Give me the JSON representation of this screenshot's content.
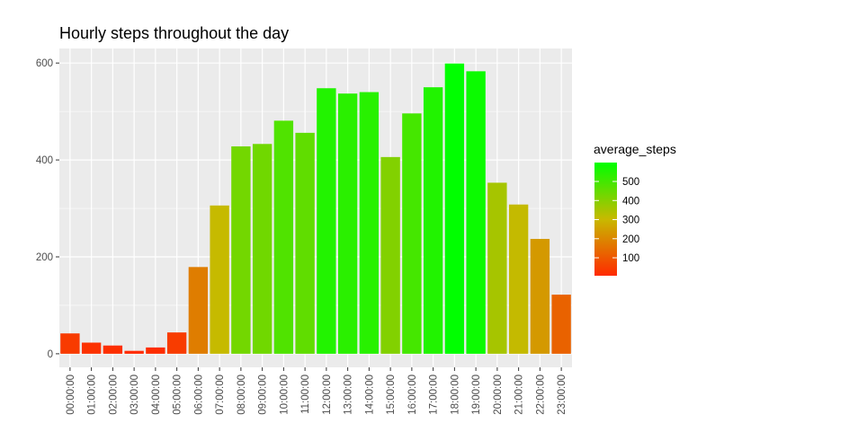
{
  "chart_data": {
    "type": "bar",
    "title": "Hourly steps throughout the day",
    "xlabel": "",
    "ylabel": "",
    "categories": [
      "00:00:00",
      "01:00:00",
      "02:00:00",
      "03:00:00",
      "04:00:00",
      "05:00:00",
      "06:00:00",
      "07:00:00",
      "08:00:00",
      "09:00:00",
      "10:00:00",
      "11:00:00",
      "12:00:00",
      "13:00:00",
      "14:00:00",
      "15:00:00",
      "16:00:00",
      "17:00:00",
      "18:00:00",
      "19:00:00",
      "20:00:00",
      "21:00:00",
      "22:00:00",
      "23:00:00"
    ],
    "values": [
      42,
      23,
      17,
      6,
      13,
      44,
      179,
      306,
      428,
      433,
      481,
      456,
      548,
      537,
      540,
      406,
      496,
      550,
      599,
      583,
      353,
      308,
      237,
      122
    ],
    "ylim": [
      -28,
      630
    ],
    "yticks": [
      0,
      200,
      400,
      600
    ],
    "grid": true,
    "panel_background": "#ebebeb",
    "gridline_color": "#ffffff",
    "color_scale": {
      "low": "#ff2a00",
      "high": "#00ff00",
      "value_min": 6,
      "value_max": 599
    },
    "legend": {
      "title": "average_steps",
      "placement": "right",
      "ticks": [
        100,
        200,
        300,
        400,
        500
      ]
    }
  }
}
